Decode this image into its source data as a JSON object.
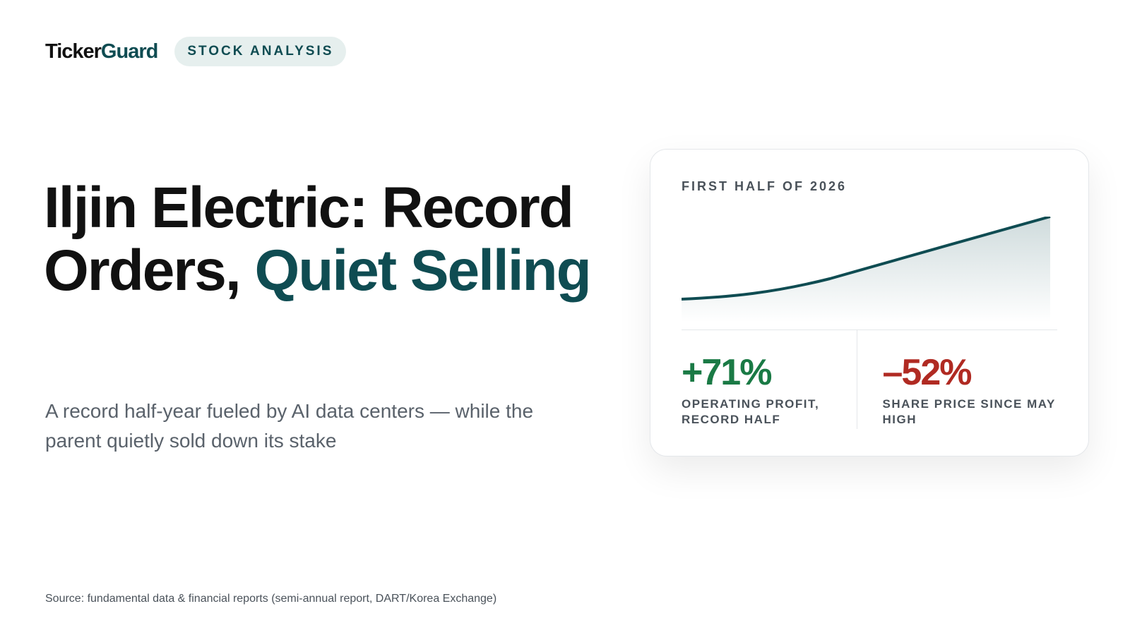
{
  "header": {
    "brand": {
      "ticker": "Ticker",
      "guard": "Guard"
    },
    "tag": "STOCK ANALYSIS"
  },
  "headline": {
    "lead": "Iljin Electric: Record Orders,",
    "accent": "Quiet Selling"
  },
  "subtitle": "A record half-year fueled by AI data centers — while the parent quietly sold down its stake",
  "card": {
    "label": "FIRST HALF OF 2026",
    "stats": [
      {
        "value": "+71%",
        "label": "OPERATING PROFIT, RECORD HALF"
      },
      {
        "value": "–52%",
        "label": "SHARE PRICE SINCE MAY HIGH"
      }
    ]
  },
  "source": "Source: fundamental data & financial reports (semi-annual report, DART/Korea Exchange)"
}
